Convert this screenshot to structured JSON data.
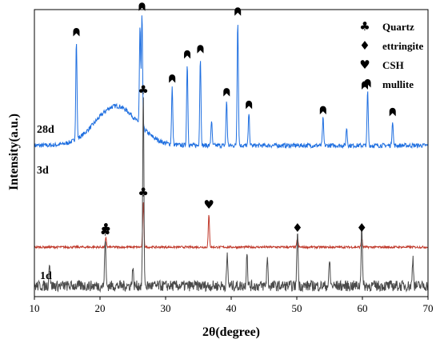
{
  "chart_data": {
    "type": "line",
    "xlabel": "2θ(degree)",
    "ylabel": "Intensity(a.u.)",
    "xlim": [
      10,
      70
    ],
    "x_ticks": [
      "10",
      "20",
      "30",
      "40",
      "50",
      "60",
      "70"
    ],
    "grid": false,
    "legend_position": "top-right",
    "legend": [
      {
        "symbol": "♣",
        "label": "Quartz"
      },
      {
        "symbol": "♦",
        "label": "ettringite"
      },
      {
        "symbol": "♥",
        "label": "CSH"
      },
      {
        "symbol": "mullite-arch",
        "label": "mullite"
      }
    ],
    "series": [
      {
        "name": "28d",
        "color": "#1f6fe0",
        "baseline": 0.83,
        "noise": 0.025,
        "hump": {
          "center": 22.5,
          "width": 4.5,
          "height": 0.22
        },
        "peaks": [
          {
            "x": 16.4,
            "h": 0.55
          },
          {
            "x": 26.1,
            "h": 0.55
          },
          {
            "x": 26.4,
            "h": 0.62
          },
          {
            "x": 31.0,
            "h": 0.32
          },
          {
            "x": 33.3,
            "h": 0.46
          },
          {
            "x": 35.3,
            "h": 0.49
          },
          {
            "x": 37.0,
            "h": 0.14
          },
          {
            "x": 39.3,
            "h": 0.25
          },
          {
            "x": 41.0,
            "h": 0.7
          },
          {
            "x": 42.7,
            "h": 0.18
          },
          {
            "x": 54.0,
            "h": 0.15
          },
          {
            "x": 57.6,
            "h": 0.1
          },
          {
            "x": 60.8,
            "h": 0.3
          },
          {
            "x": 64.6,
            "h": 0.14
          }
        ]
      },
      {
        "name": "3d",
        "color": "#c0392b",
        "baseline": 0.27,
        "noise": 0.012,
        "peaks": [
          {
            "x": 20.9,
            "h": 0.05
          },
          {
            "x": 26.6,
            "h": 0.25
          },
          {
            "x": 36.6,
            "h": 0.18
          },
          {
            "x": 50.1,
            "h": 0.05
          },
          {
            "x": 59.9,
            "h": 0.05
          }
        ]
      },
      {
        "name": "1d",
        "color": "#4a4a4a",
        "baseline": 0.03,
        "noise": 0.06,
        "peaks": [
          {
            "x": 12.3,
            "h": 0.14
          },
          {
            "x": 20.8,
            "h": 0.27
          },
          {
            "x": 25.0,
            "h": 0.1
          },
          {
            "x": 26.6,
            "h": 1.06
          },
          {
            "x": 39.4,
            "h": 0.17
          },
          {
            "x": 42.4,
            "h": 0.2
          },
          {
            "x": 45.5,
            "h": 0.16
          },
          {
            "x": 50.1,
            "h": 0.32
          },
          {
            "x": 55.0,
            "h": 0.14
          },
          {
            "x": 59.9,
            "h": 0.36
          },
          {
            "x": 67.7,
            "h": 0.16
          }
        ]
      }
    ],
    "annotations": [
      {
        "series": "28d",
        "symbol": "mullite-arch",
        "x": 16.4
      },
      {
        "series": "28d",
        "symbol": "mullite-arch",
        "x": 26.4
      },
      {
        "series": "28d",
        "symbol": "mullite-arch",
        "x": 31.0
      },
      {
        "series": "28d",
        "symbol": "mullite-arch",
        "x": 33.3
      },
      {
        "series": "28d",
        "symbol": "mullite-arch",
        "x": 35.3
      },
      {
        "series": "28d",
        "symbol": "mullite-arch",
        "x": 39.3
      },
      {
        "series": "28d",
        "symbol": "mullite-arch",
        "x": 41.0
      },
      {
        "series": "28d",
        "symbol": "mullite-arch",
        "x": 42.7
      },
      {
        "series": "28d",
        "symbol": "mullite-arch",
        "x": 54.0
      },
      {
        "series": "28d",
        "symbol": "mullite-arch",
        "x": 60.8
      },
      {
        "series": "28d",
        "symbol": "mullite-arch",
        "x": 64.6
      },
      {
        "series": "3d",
        "symbol": "♣",
        "x": 20.9
      },
      {
        "series": "3d",
        "symbol": "♣",
        "x": 26.6
      },
      {
        "series": "3d",
        "symbol": "♥",
        "x": 36.6
      },
      {
        "series": "3d",
        "symbol": "♦",
        "x": 50.1
      },
      {
        "series": "3d",
        "symbol": "♦",
        "x": 59.9
      },
      {
        "series": "1d",
        "symbol": "♣",
        "x": 20.8
      },
      {
        "series": "1d",
        "symbol": "♣",
        "x": 26.6
      }
    ]
  }
}
